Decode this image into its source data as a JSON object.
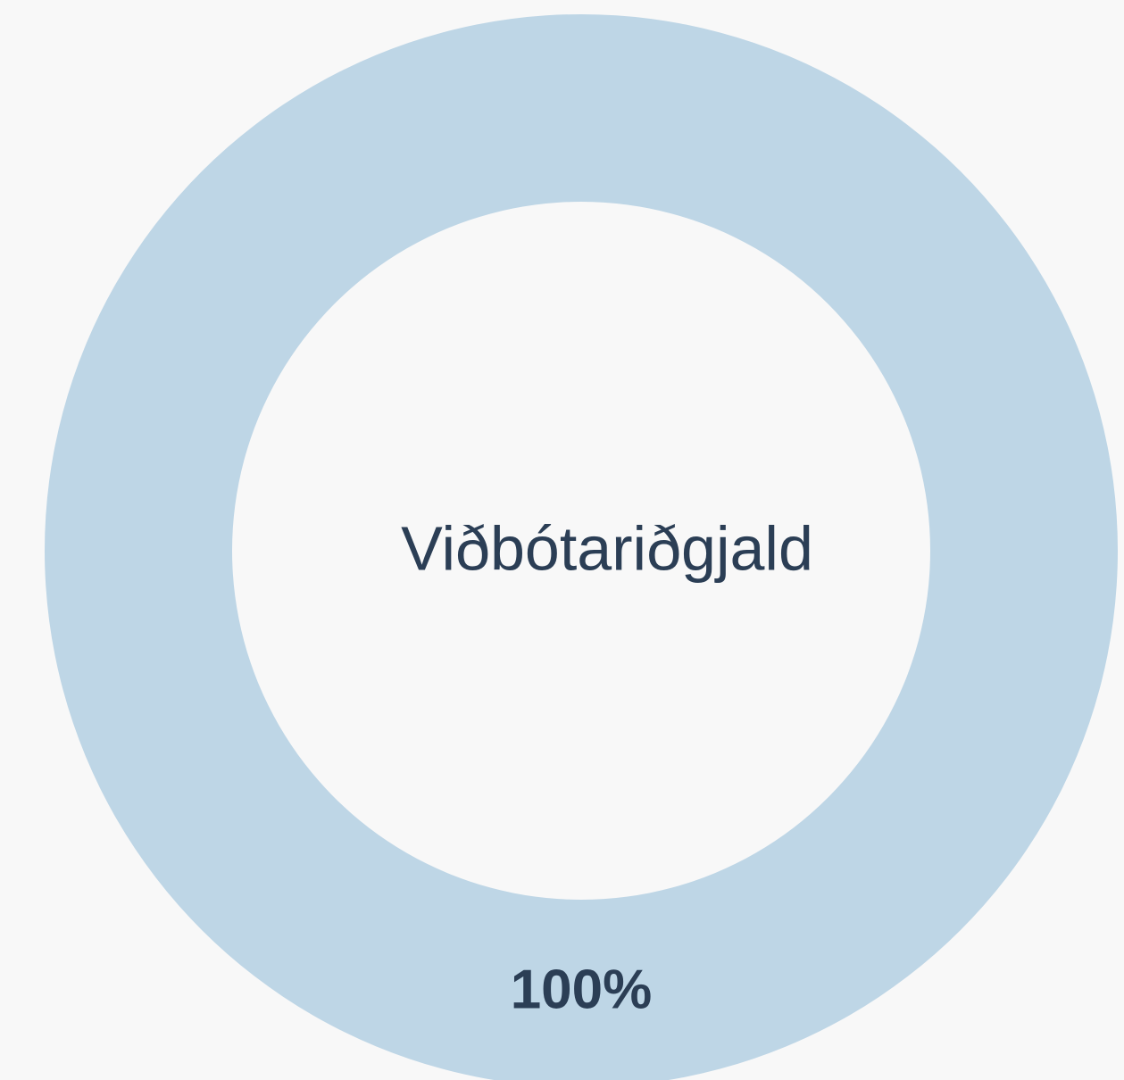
{
  "chart_data": {
    "type": "donut",
    "categories": [
      "Viðbótariðgjald"
    ],
    "values": [
      100
    ],
    "value_labels": [
      "100%"
    ],
    "colors": [
      "#bed6e6"
    ]
  }
}
